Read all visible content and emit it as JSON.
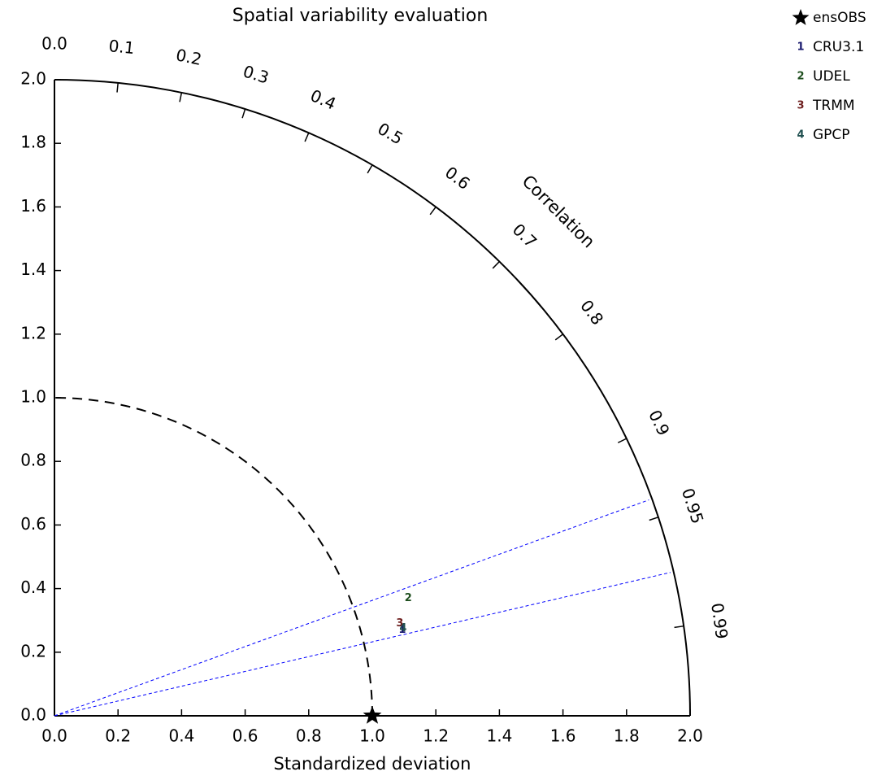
{
  "chart_data": {
    "type": "taylor",
    "title": "Spatial variability evaluation",
    "xlabel": "Standardized deviation",
    "corr_label": "Correlation",
    "xlim": [
      0,
      2
    ],
    "ylim": [
      0,
      2
    ],
    "xticks": [
      {
        "value": 0,
        "label": "0.0"
      },
      0.2,
      0.4,
      0.6,
      0.8,
      {
        "value": 1,
        "label": "1.0"
      },
      1.2,
      1.4,
      1.6,
      1.8,
      {
        "value": 2,
        "label": "2.0"
      }
    ],
    "yticks": [
      {
        "value": 0,
        "label": "0.0"
      },
      0.2,
      0.4,
      0.6,
      0.8,
      {
        "value": 1,
        "label": "1.0"
      },
      1.2,
      1.4,
      1.6,
      1.8,
      {
        "value": 2,
        "label": "2.0"
      }
    ],
    "corr_ticks": [
      {
        "value": 0,
        "label": "0.0"
      },
      0.1,
      0.2,
      0.3,
      0.4,
      0.5,
      0.6,
      0.7,
      0.8,
      0.9,
      0.95,
      0.99
    ],
    "reference": {
      "name": "ensOBS",
      "std": 1.0,
      "correlation": 1.0,
      "color": "#000000"
    },
    "series": [
      {
        "name": "CRU3.1",
        "marker": "1",
        "color": "#1a1a6e",
        "std": 1.127,
        "correlation": 0.971
      },
      {
        "name": "UDEL",
        "marker": "2",
        "color": "#1f4f1f",
        "std": 1.173,
        "correlation": 0.949
      },
      {
        "name": "TRMM",
        "marker": "3",
        "color": "#6e1f1f",
        "std": 1.125,
        "correlation": 0.966
      },
      {
        "name": "GPCP",
        "marker": "4",
        "color": "#1f4f4f",
        "std": 1.131,
        "correlation": 0.97
      }
    ],
    "correlation_lines": [
      0.94,
      0.974
    ],
    "correlation_line_color": "#0000ff"
  }
}
